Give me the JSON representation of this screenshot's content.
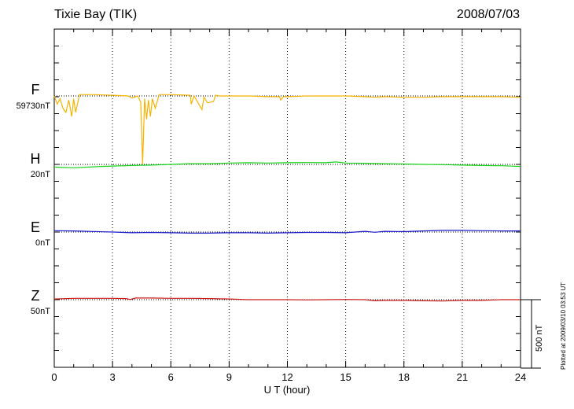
{
  "header": {
    "station": "Tixie Bay (TIK)",
    "date": "2008/07/03"
  },
  "plotted_note": "Plotted at 2009/03/10 03:53 UT",
  "scale_bar": {
    "label": "500 nT",
    "value_nT": 500
  },
  "chart_data": {
    "type": "line",
    "title": "Tixie Bay (TIK)",
    "xlabel": "U T (hour)",
    "xlim": [
      0,
      24
    ],
    "xticks": [
      "0",
      "3",
      "6",
      "9",
      "12",
      "15",
      "18",
      "21",
      "24"
    ],
    "grid": true,
    "series": [
      {
        "name": "F",
        "baseline_label": "59730nT",
        "color": "#f5b301",
        "x": [
          0,
          0.15,
          0.3,
          0.45,
          0.6,
          0.75,
          0.9,
          1.0,
          1.1,
          1.3,
          2.0,
          3.0,
          3.8,
          4.0,
          4.3,
          4.45,
          4.55,
          4.65,
          4.75,
          4.85,
          4.95,
          5.05,
          5.2,
          5.4,
          6.0,
          7.0,
          7.05,
          7.2,
          7.6,
          7.7,
          7.9,
          8.2,
          8.3,
          8.5,
          9.0,
          10.0,
          11.0,
          11.6,
          11.65,
          11.8,
          12.0,
          13.0,
          14.0,
          15.0,
          16.0,
          16.5,
          17.0,
          18.0,
          19.0,
          20.0,
          21.0,
          22.0,
          23.0,
          24.0
        ],
        "y": [
          0,
          -60,
          -20,
          -90,
          -120,
          -30,
          -150,
          -20,
          -120,
          10,
          10,
          5,
          0,
          -15,
          0,
          -45,
          -500,
          -20,
          -170,
          -30,
          -150,
          -20,
          -90,
          10,
          10,
          5,
          -60,
          0,
          -100,
          -10,
          -50,
          -40,
          5,
          0,
          0,
          0,
          -5,
          -5,
          -30,
          -5,
          -5,
          0,
          0,
          0,
          -5,
          -10,
          -5,
          -10,
          -10,
          -5,
          -5,
          -5,
          -5,
          -10
        ]
      },
      {
        "name": "H",
        "baseline_label": "20nT",
        "color": "#17d117",
        "x": [
          0,
          1,
          2,
          3,
          4,
          5,
          6,
          7,
          8,
          9,
          10,
          11,
          12,
          13,
          14,
          14.5,
          15,
          16,
          17,
          18,
          19,
          20,
          21,
          22,
          23,
          24
        ],
        "y": [
          -20,
          -25,
          -18,
          -12,
          -8,
          -5,
          0,
          5,
          5,
          10,
          12,
          10,
          12,
          13,
          12,
          18,
          10,
          8,
          5,
          3,
          0,
          -2,
          -5,
          -8,
          -10,
          -15
        ]
      },
      {
        "name": "E",
        "baseline_label": "0nT",
        "color": "#1a1acc",
        "x": [
          0,
          1,
          2,
          3,
          4,
          5,
          6,
          7,
          8,
          9,
          10,
          11,
          12,
          13,
          14,
          15,
          16,
          16.5,
          17,
          18,
          19,
          20,
          21,
          22,
          23,
          24
        ],
        "y": [
          10,
          8,
          4,
          0,
          -5,
          -3,
          -5,
          -8,
          -8,
          -5,
          -5,
          -8,
          -5,
          -3,
          -3,
          -5,
          5,
          -2,
          5,
          3,
          8,
          12,
          12,
          10,
          8,
          8
        ]
      },
      {
        "name": "Z",
        "baseline_label": "50nT",
        "color": "#cc1a1a",
        "x": [
          0,
          1,
          2,
          3,
          3.7,
          3.9,
          4.2,
          5,
          6,
          7,
          8,
          9,
          10,
          11,
          12,
          13,
          14,
          15,
          16,
          16.5,
          17,
          18,
          19,
          20,
          21,
          22,
          23,
          24
        ],
        "y": [
          5,
          10,
          10,
          10,
          8,
          2,
          12,
          12,
          10,
          10,
          8,
          5,
          0,
          0,
          0,
          -2,
          0,
          2,
          0,
          -8,
          -5,
          -5,
          -8,
          -10,
          -5,
          -5,
          0,
          0
        ]
      }
    ]
  }
}
